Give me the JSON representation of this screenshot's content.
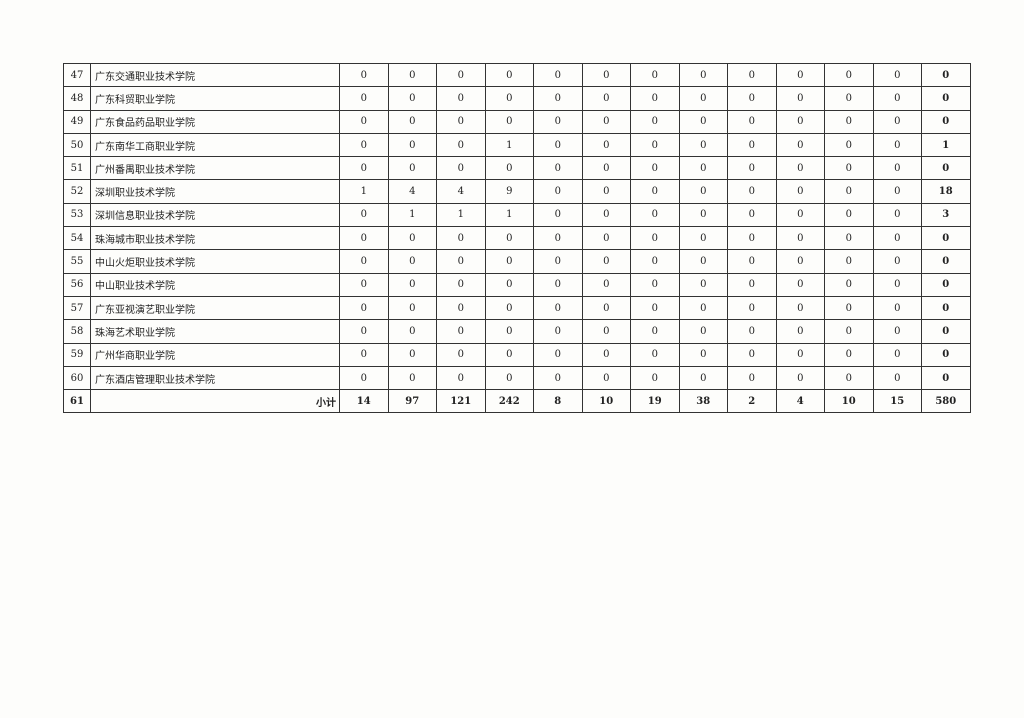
{
  "table": {
    "rows": [
      {
        "index": "47",
        "name": "广东交通职业技术学院",
        "values": [
          "0",
          "0",
          "0",
          "0",
          "0",
          "0",
          "0",
          "0",
          "0",
          "0",
          "0",
          "0"
        ],
        "total": "0"
      },
      {
        "index": "48",
        "name": "广东科贸职业学院",
        "values": [
          "0",
          "0",
          "0",
          "0",
          "0",
          "0",
          "0",
          "0",
          "0",
          "0",
          "0",
          "0"
        ],
        "total": "0"
      },
      {
        "index": "49",
        "name": "广东食品药品职业学院",
        "values": [
          "0",
          "0",
          "0",
          "0",
          "0",
          "0",
          "0",
          "0",
          "0",
          "0",
          "0",
          "0"
        ],
        "total": "0"
      },
      {
        "index": "50",
        "name": "广东南华工商职业学院",
        "values": [
          "0",
          "0",
          "0",
          "1",
          "0",
          "0",
          "0",
          "0",
          "0",
          "0",
          "0",
          "0"
        ],
        "total": "1"
      },
      {
        "index": "51",
        "name": "广州番禺职业技术学院",
        "values": [
          "0",
          "0",
          "0",
          "0",
          "0",
          "0",
          "0",
          "0",
          "0",
          "0",
          "0",
          "0"
        ],
        "total": "0"
      },
      {
        "index": "52",
        "name": "深圳职业技术学院",
        "values": [
          "1",
          "4",
          "4",
          "9",
          "0",
          "0",
          "0",
          "0",
          "0",
          "0",
          "0",
          "0"
        ],
        "total": "18"
      },
      {
        "index": "53",
        "name": "深圳信息职业技术学院",
        "values": [
          "0",
          "1",
          "1",
          "1",
          "0",
          "0",
          "0",
          "0",
          "0",
          "0",
          "0",
          "0"
        ],
        "total": "3"
      },
      {
        "index": "54",
        "name": "珠海城市职业技术学院",
        "values": [
          "0",
          "0",
          "0",
          "0",
          "0",
          "0",
          "0",
          "0",
          "0",
          "0",
          "0",
          "0"
        ],
        "total": "0"
      },
      {
        "index": "55",
        "name": "中山火炬职业技术学院",
        "values": [
          "0",
          "0",
          "0",
          "0",
          "0",
          "0",
          "0",
          "0",
          "0",
          "0",
          "0",
          "0"
        ],
        "total": "0"
      },
      {
        "index": "56",
        "name": "中山职业技术学院",
        "values": [
          "0",
          "0",
          "0",
          "0",
          "0",
          "0",
          "0",
          "0",
          "0",
          "0",
          "0",
          "0"
        ],
        "total": "0"
      },
      {
        "index": "57",
        "name": "广东亚视演艺职业学院",
        "values": [
          "0",
          "0",
          "0",
          "0",
          "0",
          "0",
          "0",
          "0",
          "0",
          "0",
          "0",
          "0"
        ],
        "total": "0"
      },
      {
        "index": "58",
        "name": "珠海艺术职业学院",
        "values": [
          "0",
          "0",
          "0",
          "0",
          "0",
          "0",
          "0",
          "0",
          "0",
          "0",
          "0",
          "0"
        ],
        "total": "0"
      },
      {
        "index": "59",
        "name": "广州华商职业学院",
        "values": [
          "0",
          "0",
          "0",
          "0",
          "0",
          "0",
          "0",
          "0",
          "0",
          "0",
          "0",
          "0"
        ],
        "total": "0"
      },
      {
        "index": "60",
        "name": "广东酒店管理职业技术学院",
        "values": [
          "0",
          "0",
          "0",
          "0",
          "0",
          "0",
          "0",
          "0",
          "0",
          "0",
          "0",
          "0"
        ],
        "total": "0"
      }
    ],
    "subtotal": {
      "index": "61",
      "name": "小计",
      "values": [
        "14",
        "97",
        "121",
        "242",
        "8",
        "10",
        "19",
        "38",
        "2",
        "4",
        "10",
        "15"
      ],
      "total": "580"
    }
  }
}
